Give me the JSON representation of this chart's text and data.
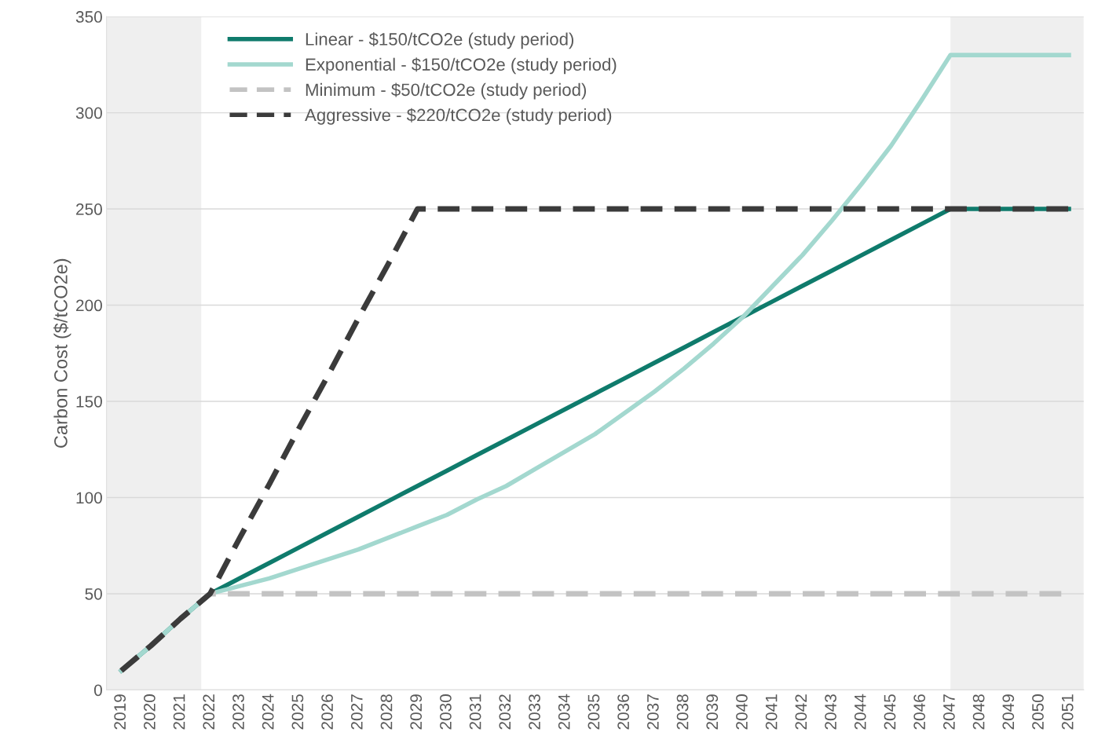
{
  "chart_data": {
    "type": "line",
    "ylabel": "Carbon Cost ($/tCO2e)",
    "x": [
      2019,
      2020,
      2021,
      2022,
      2023,
      2024,
      2025,
      2026,
      2027,
      2028,
      2029,
      2030,
      2031,
      2032,
      2033,
      2034,
      2035,
      2036,
      2037,
      2038,
      2039,
      2040,
      2041,
      2042,
      2043,
      2044,
      2045,
      2046,
      2047,
      2048,
      2049,
      2050,
      2051
    ],
    "series": [
      {
        "name": "Linear - $150/tCO2e (study period)",
        "color": "#0f7b6c",
        "line_style": "solid",
        "values": [
          10,
          23,
          37,
          50,
          58,
          66,
          74,
          82,
          90,
          98,
          106,
          114,
          122,
          130,
          138,
          146,
          154,
          162,
          170,
          178,
          186,
          194,
          202,
          210,
          218,
          226,
          234,
          242,
          250,
          250,
          250,
          250,
          250
        ]
      },
      {
        "name": "Exponential - $150/tCO2e (study period)",
        "color": "#a3d8cf",
        "line_style": "solid",
        "values": [
          10,
          23,
          37,
          50,
          54,
          58,
          63,
          68,
          73,
          79,
          85,
          91,
          99,
          106,
          115,
          124,
          133,
          144,
          155,
          167,
          180,
          194,
          210,
          226,
          244,
          263,
          283,
          306,
          330,
          330,
          330,
          330,
          330
        ]
      },
      {
        "name": "Minimum - $50/tCO2e (study period)",
        "color": "#c3c3c3",
        "line_style": "dashed",
        "values": [
          10,
          23,
          37,
          50,
          50,
          50,
          50,
          50,
          50,
          50,
          50,
          50,
          50,
          50,
          50,
          50,
          50,
          50,
          50,
          50,
          50,
          50,
          50,
          50,
          50,
          50,
          50,
          50,
          50,
          50,
          50,
          50,
          50
        ]
      },
      {
        "name": "Aggressive - $220/tCO2e (study period)",
        "color": "#3b3b3b",
        "line_style": "dashed",
        "values": [
          10,
          23,
          37,
          50,
          79,
          107,
          136,
          164,
          193,
          221,
          250,
          250,
          250,
          250,
          250,
          250,
          250,
          250,
          250,
          250,
          250,
          250,
          250,
          250,
          250,
          250,
          250,
          250,
          250,
          250,
          250,
          250,
          250
        ]
      }
    ],
    "xlim": [
      2018.5,
      2051.5
    ],
    "xticks": [
      2019,
      2020,
      2021,
      2022,
      2023,
      2024,
      2025,
      2026,
      2027,
      2028,
      2029,
      2030,
      2031,
      2032,
      2033,
      2034,
      2035,
      2036,
      2037,
      2038,
      2039,
      2040,
      2041,
      2042,
      2043,
      2044,
      2045,
      2046,
      2047,
      2048,
      2049,
      2050,
      2051
    ],
    "ylim": [
      0,
      350
    ],
    "yticks": [
      0,
      50,
      100,
      150,
      200,
      250,
      300,
      350
    ],
    "bands": [
      {
        "axis": "x",
        "from": 2018.5,
        "to": 2021.7,
        "color": "#efefef"
      },
      {
        "axis": "x",
        "from": 2047,
        "to": 2051.5,
        "color": "#efefef"
      }
    ],
    "grid": "y",
    "legend": "top left"
  }
}
